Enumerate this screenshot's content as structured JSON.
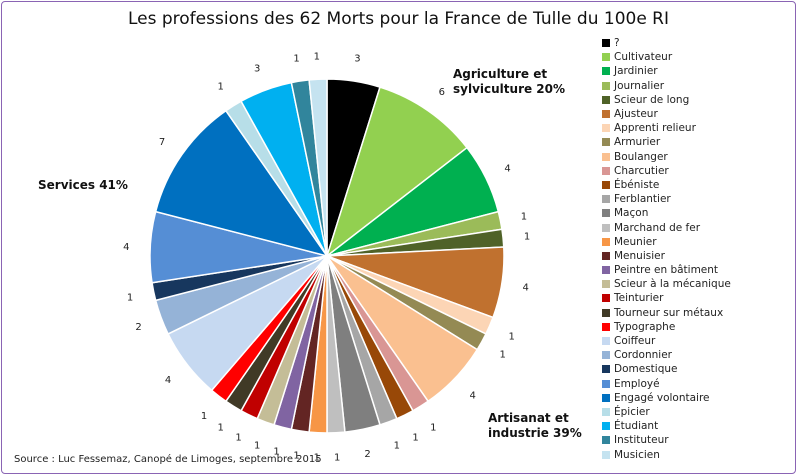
{
  "chart_data": {
    "type": "pie",
    "title": "Les professions des 62 Morts pour la France de Tulle du 100e RI",
    "total": 62,
    "slices": [
      {
        "label": "?",
        "value": 3,
        "color": "#000000"
      },
      {
        "label": "Cultivateur",
        "value": 6,
        "color": "#92d050"
      },
      {
        "label": "Jardinier",
        "value": 4,
        "color": "#00b050"
      },
      {
        "label": "Journalier",
        "value": 1,
        "color": "#9bbb59"
      },
      {
        "label": "Scieur de long",
        "value": 1,
        "color": "#4f6228"
      },
      {
        "label": "Ajusteur",
        "value": 4,
        "color": "#c0712f"
      },
      {
        "label": "Apprenti relieur",
        "value": 1,
        "color": "#fcd5b5"
      },
      {
        "label": "Armurier",
        "value": 1,
        "color": "#948a54"
      },
      {
        "label": "Boulanger",
        "value": 4,
        "color": "#fac090"
      },
      {
        "label": "Charcutier",
        "value": 1,
        "color": "#d99694"
      },
      {
        "label": "Ébéniste",
        "value": 1,
        "color": "#984807"
      },
      {
        "label": "Ferblantier",
        "value": 1,
        "color": "#a6a6a6"
      },
      {
        "label": "Maçon",
        "value": 2,
        "color": "#7f7f7f"
      },
      {
        "label": "Marchand de fer",
        "value": 1,
        "color": "#bfbfbf"
      },
      {
        "label": "Meunier",
        "value": 1,
        "color": "#f79646"
      },
      {
        "label": "Menuisier",
        "value": 1,
        "color": "#632523"
      },
      {
        "label": "Peintre en bâtiment",
        "value": 1,
        "color": "#8064a2"
      },
      {
        "label": "Scieur à la mécanique",
        "value": 1,
        "color": "#c4bd97"
      },
      {
        "label": "Teinturier",
        "value": 1,
        "color": "#c00000"
      },
      {
        "label": "Tourneur sur métaux",
        "value": 1,
        "color": "#403a26"
      },
      {
        "label": "Typographe",
        "value": 1,
        "color": "#ff0000"
      },
      {
        "label": "Coiffeur",
        "value": 4,
        "color": "#c6d9f1"
      },
      {
        "label": "Cordonnier",
        "value": 2,
        "color": "#95b3d7"
      },
      {
        "label": "Domestique",
        "value": 1,
        "color": "#17375e"
      },
      {
        "label": "Employé",
        "value": 4,
        "color": "#558ed5"
      },
      {
        "label": "Engagé volontaire",
        "value": 7,
        "color": "#0070c0"
      },
      {
        "label": "Épicier",
        "value": 1,
        "color": "#b7dee8"
      },
      {
        "label": "Étudiant",
        "value": 3,
        "color": "#00b0f0"
      },
      {
        "label": "Instituteur",
        "value": 1,
        "color": "#31859c"
      },
      {
        "label": "Musicien",
        "value": 1,
        "color": "#c5e3f0"
      }
    ],
    "groups": [
      {
        "label": "Agriculture et sylviculture 20%",
        "lines": [
          "Agriculture et",
          "sylviculture 20%"
        ]
      },
      {
        "label": "Artisanat et industrie 39%",
        "lines": [
          "Artisanat et",
          "industrie 39%"
        ]
      },
      {
        "label": "Services 41%",
        "lines": [
          "Services 41%"
        ]
      }
    ],
    "legend_position": "right",
    "data_labels": "value"
  },
  "source": "Source : Luc Fessemaz, Canopé de Limoges, septembre 2015"
}
